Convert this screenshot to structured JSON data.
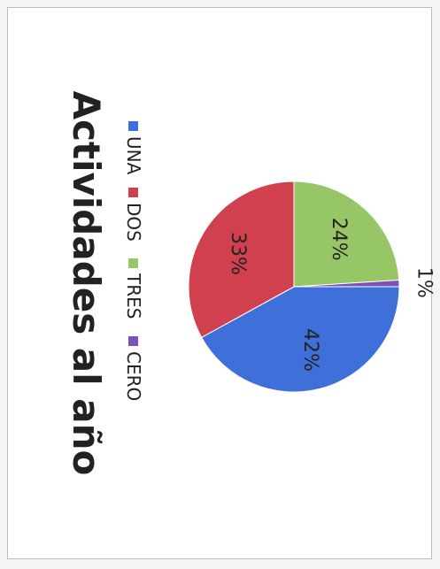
{
  "chart_data": {
    "type": "pie",
    "title": "Actividades al año",
    "categories": [
      "UNA",
      "DOS",
      "TRES",
      "CERO"
    ],
    "values": [
      42,
      33,
      24,
      1
    ],
    "data_labels": [
      "42%",
      "33%",
      "24%",
      "1%"
    ],
    "colors": [
      "#3f6fd8",
      "#d0404f",
      "#97c667",
      "#7a52b9"
    ],
    "legend_position": "top"
  }
}
